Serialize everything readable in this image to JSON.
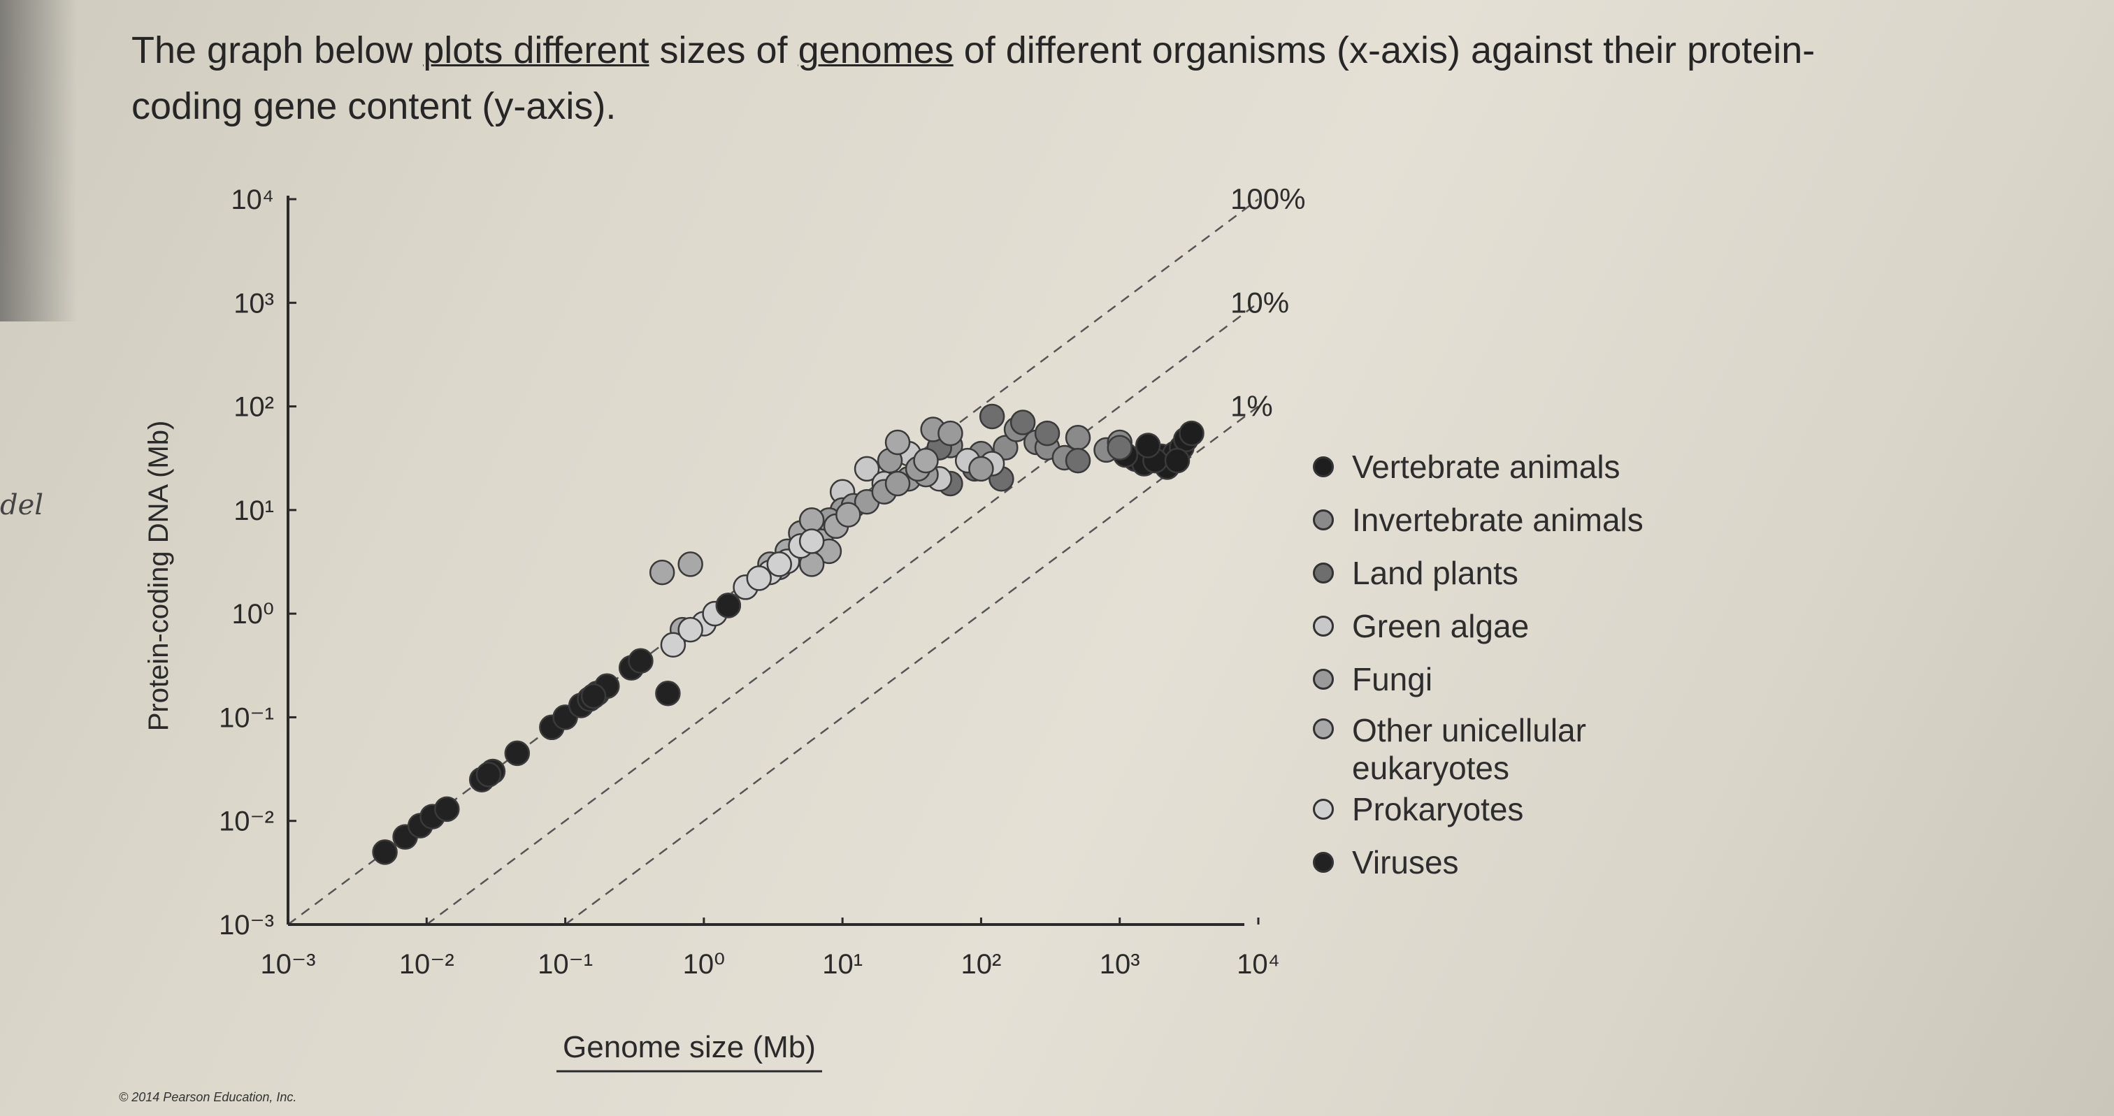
{
  "intro": {
    "line1_start": "The graph below ",
    "line1_u1": "plots different",
    "line1_mid": " sizes of ",
    "line1_u2": "genomes",
    "line1_end": " of different organisms (x-axis) against their protein-",
    "line2": "coding gene content (y-axis)."
  },
  "copyright": "© 2014 Pearson Education, Inc.",
  "margin_scribble": "del",
  "chart_data": {
    "type": "scatter",
    "xlabel": "Genome size (Mb)",
    "ylabel": "Protein-coding DNA (Mb)",
    "xscale": "log",
    "yscale": "log",
    "xlim": [
      0.001,
      10000
    ],
    "ylim": [
      0.001,
      10000
    ],
    "x_ticks": [
      "10⁻³",
      "10⁻²",
      "10⁻¹",
      "10⁰",
      "10¹",
      "10²",
      "10³",
      "10⁴"
    ],
    "y_ticks": [
      "10⁻³",
      "10⁻²",
      "10⁻¹",
      "10⁰",
      "10¹",
      "10²",
      "10³",
      "10⁴"
    ],
    "reference_lines": [
      {
        "label": "100%",
        "fraction": 1
      },
      {
        "label": "10%",
        "fraction": 0.1
      },
      {
        "label": "1%",
        "fraction": 0.01
      }
    ],
    "legend_position": "right",
    "series": [
      {
        "name": "Vertebrate animals",
        "color": "#1e1e1e",
        "points": [
          [
            1300,
            31
          ],
          [
            1500,
            28
          ],
          [
            2000,
            33
          ],
          [
            2500,
            35
          ],
          [
            2800,
            40
          ],
          [
            3000,
            48
          ],
          [
            2200,
            26
          ],
          [
            1800,
            30
          ],
          [
            1100,
            34
          ],
          [
            3300,
            55
          ],
          [
            1600,
            42
          ],
          [
            2600,
            30
          ]
        ]
      },
      {
        "name": "Invertebrate animals",
        "color": "#8a8a8a",
        "points": [
          [
            100,
            35
          ],
          [
            150,
            40
          ],
          [
            250,
            45
          ],
          [
            500,
            50
          ],
          [
            800,
            38
          ],
          [
            1000,
            45
          ],
          [
            180,
            60
          ],
          [
            300,
            40
          ],
          [
            60,
            42
          ],
          [
            400,
            32
          ]
        ]
      },
      {
        "name": "Land plants",
        "color": "#6e6e6e",
        "points": [
          [
            120,
            80
          ],
          [
            200,
            70
          ],
          [
            500,
            30
          ],
          [
            1000,
            40
          ],
          [
            50,
            40
          ],
          [
            90,
            25
          ],
          [
            140,
            20
          ],
          [
            60,
            18
          ],
          [
            300,
            55
          ]
        ]
      },
      {
        "name": "Green algae",
        "color": "#c8c8c8",
        "points": [
          [
            15,
            25
          ],
          [
            30,
            35
          ],
          [
            50,
            20
          ],
          [
            80,
            30
          ],
          [
            120,
            28
          ],
          [
            20,
            18
          ],
          [
            10,
            15
          ]
        ]
      },
      {
        "name": "Fungi",
        "color": "#9a9a9a",
        "points": [
          [
            10,
            10
          ],
          [
            12,
            11
          ],
          [
            15,
            12
          ],
          [
            20,
            15
          ],
          [
            30,
            20
          ],
          [
            40,
            22
          ],
          [
            25,
            18
          ],
          [
            35,
            25
          ],
          [
            8,
            8
          ],
          [
            45,
            60
          ],
          [
            60,
            55
          ],
          [
            100,
            25
          ],
          [
            22,
            30
          ]
        ]
      },
      {
        "name": "Other unicellular eukaryotes",
        "color": "#a8a8a8",
        "points": [
          [
            3,
            3
          ],
          [
            5,
            6
          ],
          [
            7,
            5
          ],
          [
            9,
            7
          ],
          [
            11,
            9
          ],
          [
            4,
            4
          ],
          [
            6,
            8
          ],
          [
            8,
            4
          ],
          [
            0.7,
            0.7
          ],
          [
            0.5,
            2.5
          ],
          [
            0.8,
            3
          ],
          [
            25,
            45
          ],
          [
            40,
            30
          ],
          [
            6,
            3
          ],
          [
            3.5,
            2.8
          ]
        ]
      },
      {
        "name": "Prokaryotes",
        "color": "#d0d0d0",
        "points": [
          [
            0.6,
            0.5
          ],
          [
            1,
            0.8
          ],
          [
            1.5,
            1.2
          ],
          [
            2,
            1.8
          ],
          [
            3,
            2.5
          ],
          [
            4,
            3.2
          ],
          [
            5,
            4.5
          ],
          [
            6,
            5
          ],
          [
            1.2,
            1
          ],
          [
            2.5,
            2.2
          ],
          [
            0.8,
            0.7
          ],
          [
            3.5,
            3
          ]
        ]
      },
      {
        "name": "Viruses",
        "color": "#222222",
        "points": [
          [
            0.005,
            0.005
          ],
          [
            0.007,
            0.007
          ],
          [
            0.009,
            0.009
          ],
          [
            0.011,
            0.011
          ],
          [
            0.014,
            0.013
          ],
          [
            0.025,
            0.025
          ],
          [
            0.03,
            0.03
          ],
          [
            0.045,
            0.045
          ],
          [
            0.08,
            0.08
          ],
          [
            0.1,
            0.1
          ],
          [
            0.13,
            0.13
          ],
          [
            0.15,
            0.15
          ],
          [
            0.17,
            0.17
          ],
          [
            0.2,
            0.2
          ],
          [
            0.3,
            0.3
          ],
          [
            0.35,
            0.35
          ],
          [
            0.55,
            0.17
          ],
          [
            1.5,
            1.2
          ],
          [
            0.16,
            0.16
          ],
          [
            0.028,
            0.028
          ]
        ]
      }
    ]
  }
}
